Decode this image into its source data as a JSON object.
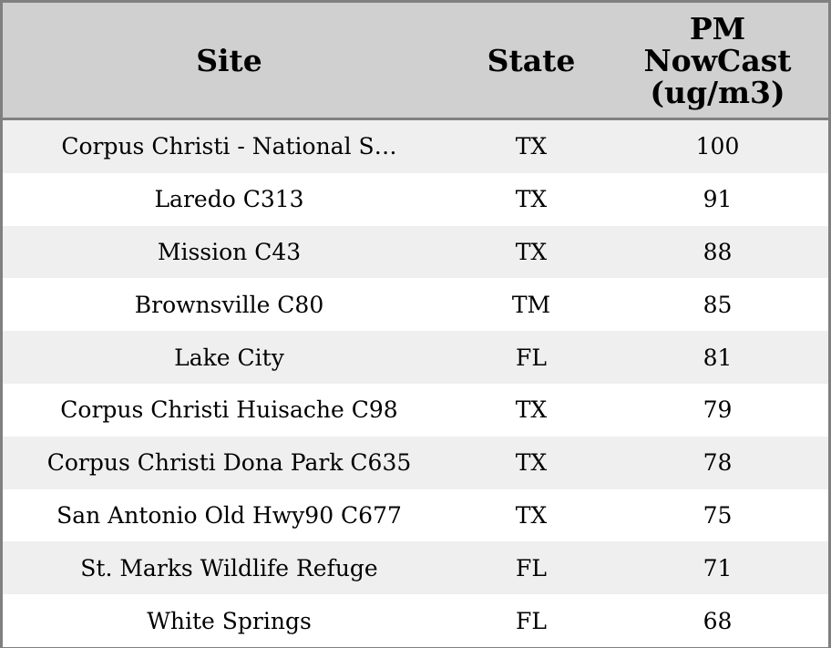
{
  "table": {
    "header": [
      "Site",
      "State",
      "PM NowCast (ug/m3)"
    ],
    "rows": [
      [
        "Corpus Christi - National S…",
        "TX",
        100
      ],
      [
        "Laredo C313",
        "TX",
        91
      ],
      [
        "Mission C43",
        "TX",
        88
      ],
      [
        "Brownsville C80",
        "TM",
        85
      ],
      [
        "Lake City",
        "FL",
        81
      ],
      [
        "Corpus Christi Huisache C98",
        "TX",
        79
      ],
      [
        "Corpus Christi Dona Park C635",
        "TX",
        78
      ],
      [
        "San Antonio Old Hwy90 C677",
        "TX",
        75
      ],
      [
        "St. Marks Wildlife Refuge",
        "FL",
        71
      ],
      [
        "White Springs",
        "FL",
        68
      ]
    ]
  }
}
